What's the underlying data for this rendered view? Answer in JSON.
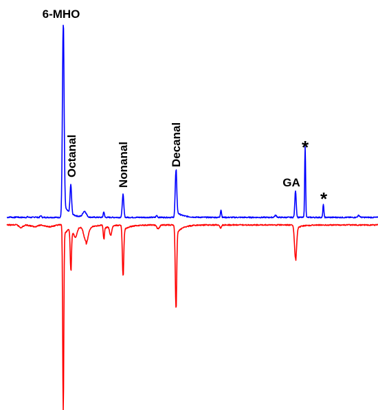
{
  "chart_data": {
    "type": "line",
    "x_unit_note": "",
    "series": [
      {
        "color": "#0000ff",
        "direction": "up",
        "points": [
          [
            0,
            0.0
          ],
          [
            3,
            0.0
          ],
          [
            5,
            0.01
          ],
          [
            6,
            0.02
          ],
          [
            7,
            0.01
          ],
          [
            9,
            0.0
          ],
          [
            12,
            0.0
          ],
          [
            16,
            0.005
          ],
          [
            18,
            0.0
          ],
          [
            22,
            0.0
          ],
          [
            24,
            0.005
          ],
          [
            28,
            0.0
          ],
          [
            33,
            0.0
          ],
          [
            38,
            0.0
          ],
          [
            40,
            0.005
          ],
          [
            43,
            0.0
          ],
          [
            50,
            0.0
          ],
          [
            52,
            0.01
          ],
          [
            53,
            0.0
          ],
          [
            57,
            0.0
          ],
          [
            60,
            0.02
          ],
          [
            61,
            0.0
          ],
          [
            65,
            0.0
          ]
        ],
        "peaks": [
          {
            "x": 92.0,
            "height": 1.0,
            "width": 1.2,
            "tail": 0.07
          },
          {
            "x": 103.0,
            "height": 0.15,
            "width": 1.1,
            "tail": 0.0
          },
          {
            "x": 123.0,
            "height": 0.03,
            "width": 2.5,
            "tail": 0.0
          },
          {
            "x": 151.0,
            "height": 0.03,
            "width": 0.8,
            "tail": 0.0
          },
          {
            "x": 179.0,
            "height": 0.12,
            "width": 1.1,
            "tail": 0.0
          },
          {
            "x": 228.0,
            "height": 0.01,
            "width": 1.0,
            "tail": 0.0
          },
          {
            "x": 256.0,
            "height": 0.24,
            "width": 1.1,
            "tail": 0.03
          },
          {
            "x": 321.5,
            "height": 0.04,
            "width": 0.8,
            "tail": 0.0
          },
          {
            "x": 401.0,
            "height": 0.01,
            "width": 1.5,
            "tail": 0.0
          },
          {
            "x": 430.0,
            "height": 0.14,
            "width": 1.0,
            "tail": 0.0
          },
          {
            "x": 444.0,
            "height": 0.37,
            "width": 0.7,
            "tail": 0.0
          },
          {
            "x": 470.5,
            "height": 0.07,
            "width": 0.7,
            "tail": 0.0
          },
          {
            "x": 522.0,
            "height": 0.01,
            "width": 1.5,
            "tail": 0.0
          }
        ]
      },
      {
        "color": "#ff0000",
        "direction": "down",
        "points": [
          [
            0,
            0.0
          ],
          [
            25,
            0.0
          ],
          [
            30,
            0.03
          ],
          [
            35,
            0.01
          ],
          [
            38,
            0.0
          ],
          [
            45,
            0.01
          ],
          [
            50,
            0.02
          ],
          [
            55,
            0.01
          ],
          [
            60,
            0.0
          ],
          [
            70,
            0.02
          ],
          [
            80,
            0.01
          ],
          [
            85,
            0.0
          ]
        ],
        "peaks": [
          {
            "x": 92.0,
            "height": 1.0,
            "width": 0.8,
            "tail": 0.06
          },
          {
            "x": 103.0,
            "height": 0.22,
            "width": 0.9,
            "tail": 0.04
          },
          {
            "x": 110.0,
            "height": 0.04,
            "width": 2.0,
            "tail": 0.0
          },
          {
            "x": 125.0,
            "height": 0.08,
            "width": 3.0,
            "tail": 0.02
          },
          {
            "x": 151.0,
            "height": 0.07,
            "width": 0.8,
            "tail": 0.02
          },
          {
            "x": 161.0,
            "height": 0.05,
            "width": 1.5,
            "tail": 0.0
          },
          {
            "x": 179.0,
            "height": 0.27,
            "width": 1.0,
            "tail": 0.03
          },
          {
            "x": 230.0,
            "height": 0.02,
            "width": 2.0,
            "tail": 0.0
          },
          {
            "x": 256.0,
            "height": 0.44,
            "width": 1.0,
            "tail": 0.05
          },
          {
            "x": 321.0,
            "height": 0.02,
            "width": 1.0,
            "tail": 0.0
          },
          {
            "x": 430.0,
            "height": 0.18,
            "width": 1.5,
            "tail": 0.02
          }
        ]
      }
    ],
    "annotations": [
      {
        "text": "6-MHO",
        "x": 92,
        "orientation": "horizontal"
      },
      {
        "text": "Octanal",
        "x": 103,
        "orientation": "vertical"
      },
      {
        "text": "Nonanal",
        "x": 179,
        "orientation": "vertical"
      },
      {
        "text": "Decanal",
        "x": 256,
        "orientation": "vertical"
      },
      {
        "text": "GA",
        "x": 430,
        "orientation": "horizontal"
      },
      {
        "text": "*",
        "x": 444,
        "orientation": "horizontal"
      },
      {
        "text": "*",
        "x": 470.5,
        "orientation": "horizontal"
      }
    ],
    "xlim": [
      0,
      550
    ],
    "ylim": [
      0,
      1
    ],
    "grid": false,
    "axes_visible": false,
    "title": "",
    "xlabel": "",
    "ylabel": ""
  }
}
